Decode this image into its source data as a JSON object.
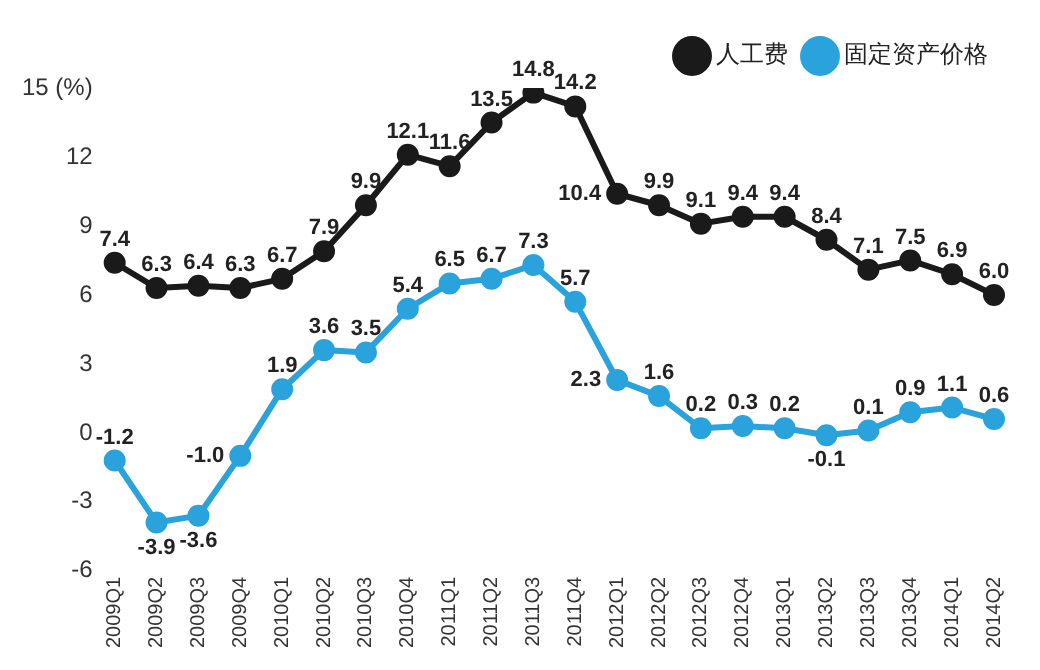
{
  "chart_data": {
    "type": "line",
    "categories": [
      "2009Q1",
      "2009Q2",
      "2009Q3",
      "2009Q4",
      "2010Q1",
      "2010Q2",
      "2010Q3",
      "2010Q4",
      "2011Q1",
      "2011Q2",
      "2011Q3",
      "2011Q4",
      "2012Q1",
      "2012Q2",
      "2012Q3",
      "2012Q4",
      "2013Q1",
      "2013Q2",
      "2013Q3",
      "2013Q4",
      "2014Q1",
      "2014Q2"
    ],
    "series": [
      {
        "name": "人工费",
        "color": "#1a1a1a",
        "values": [
          7.4,
          6.3,
          6.4,
          6.3,
          6.7,
          7.9,
          9.9,
          12.1,
          11.6,
          13.5,
          14.8,
          14.2,
          10.4,
          9.9,
          9.1,
          9.4,
          9.4,
          8.4,
          7.1,
          7.5,
          6.9,
          6.0
        ],
        "value_labels": [
          "7.4",
          "6.3",
          "6.4",
          "6.3",
          "6.7",
          "7.9",
          "9.9",
          "12.1",
          "11.6",
          "13.5",
          "14.8",
          "14.2",
          "10.4",
          "9.9",
          "9.1",
          "9.4",
          "9.4",
          "8.4",
          "7.1",
          "7.5",
          "6.9",
          "6.0"
        ]
      },
      {
        "name": "固定资产价格",
        "color": "#2aa3dc",
        "values": [
          -1.2,
          -3.9,
          -3.6,
          -1.0,
          1.9,
          3.6,
          3.5,
          5.4,
          6.5,
          6.7,
          7.3,
          5.7,
          2.3,
          1.6,
          0.2,
          0.3,
          0.2,
          -0.1,
          0.1,
          0.9,
          1.1,
          0.6
        ],
        "value_labels": [
          "-1.2",
          "-3.9",
          "-3.6",
          "-1.0",
          "1.9",
          "3.6",
          "3.5",
          "5.4",
          "6.5",
          "6.7",
          "7.3",
          "5.7",
          "2.3",
          "1.6",
          "0.2",
          "0.3",
          "0.2",
          "-0.1",
          "0.1",
          "0.9",
          "1.1",
          "0.6"
        ]
      }
    ],
    "ylim": [
      -6,
      15
    ],
    "yticks": [
      -6,
      -3,
      0,
      3,
      6,
      9,
      {
        "value": 15,
        "label": "15 (%)"
      },
      12
    ],
    "grid": false,
    "legend": "top right",
    "marker": "circle",
    "line_style": "solid"
  }
}
